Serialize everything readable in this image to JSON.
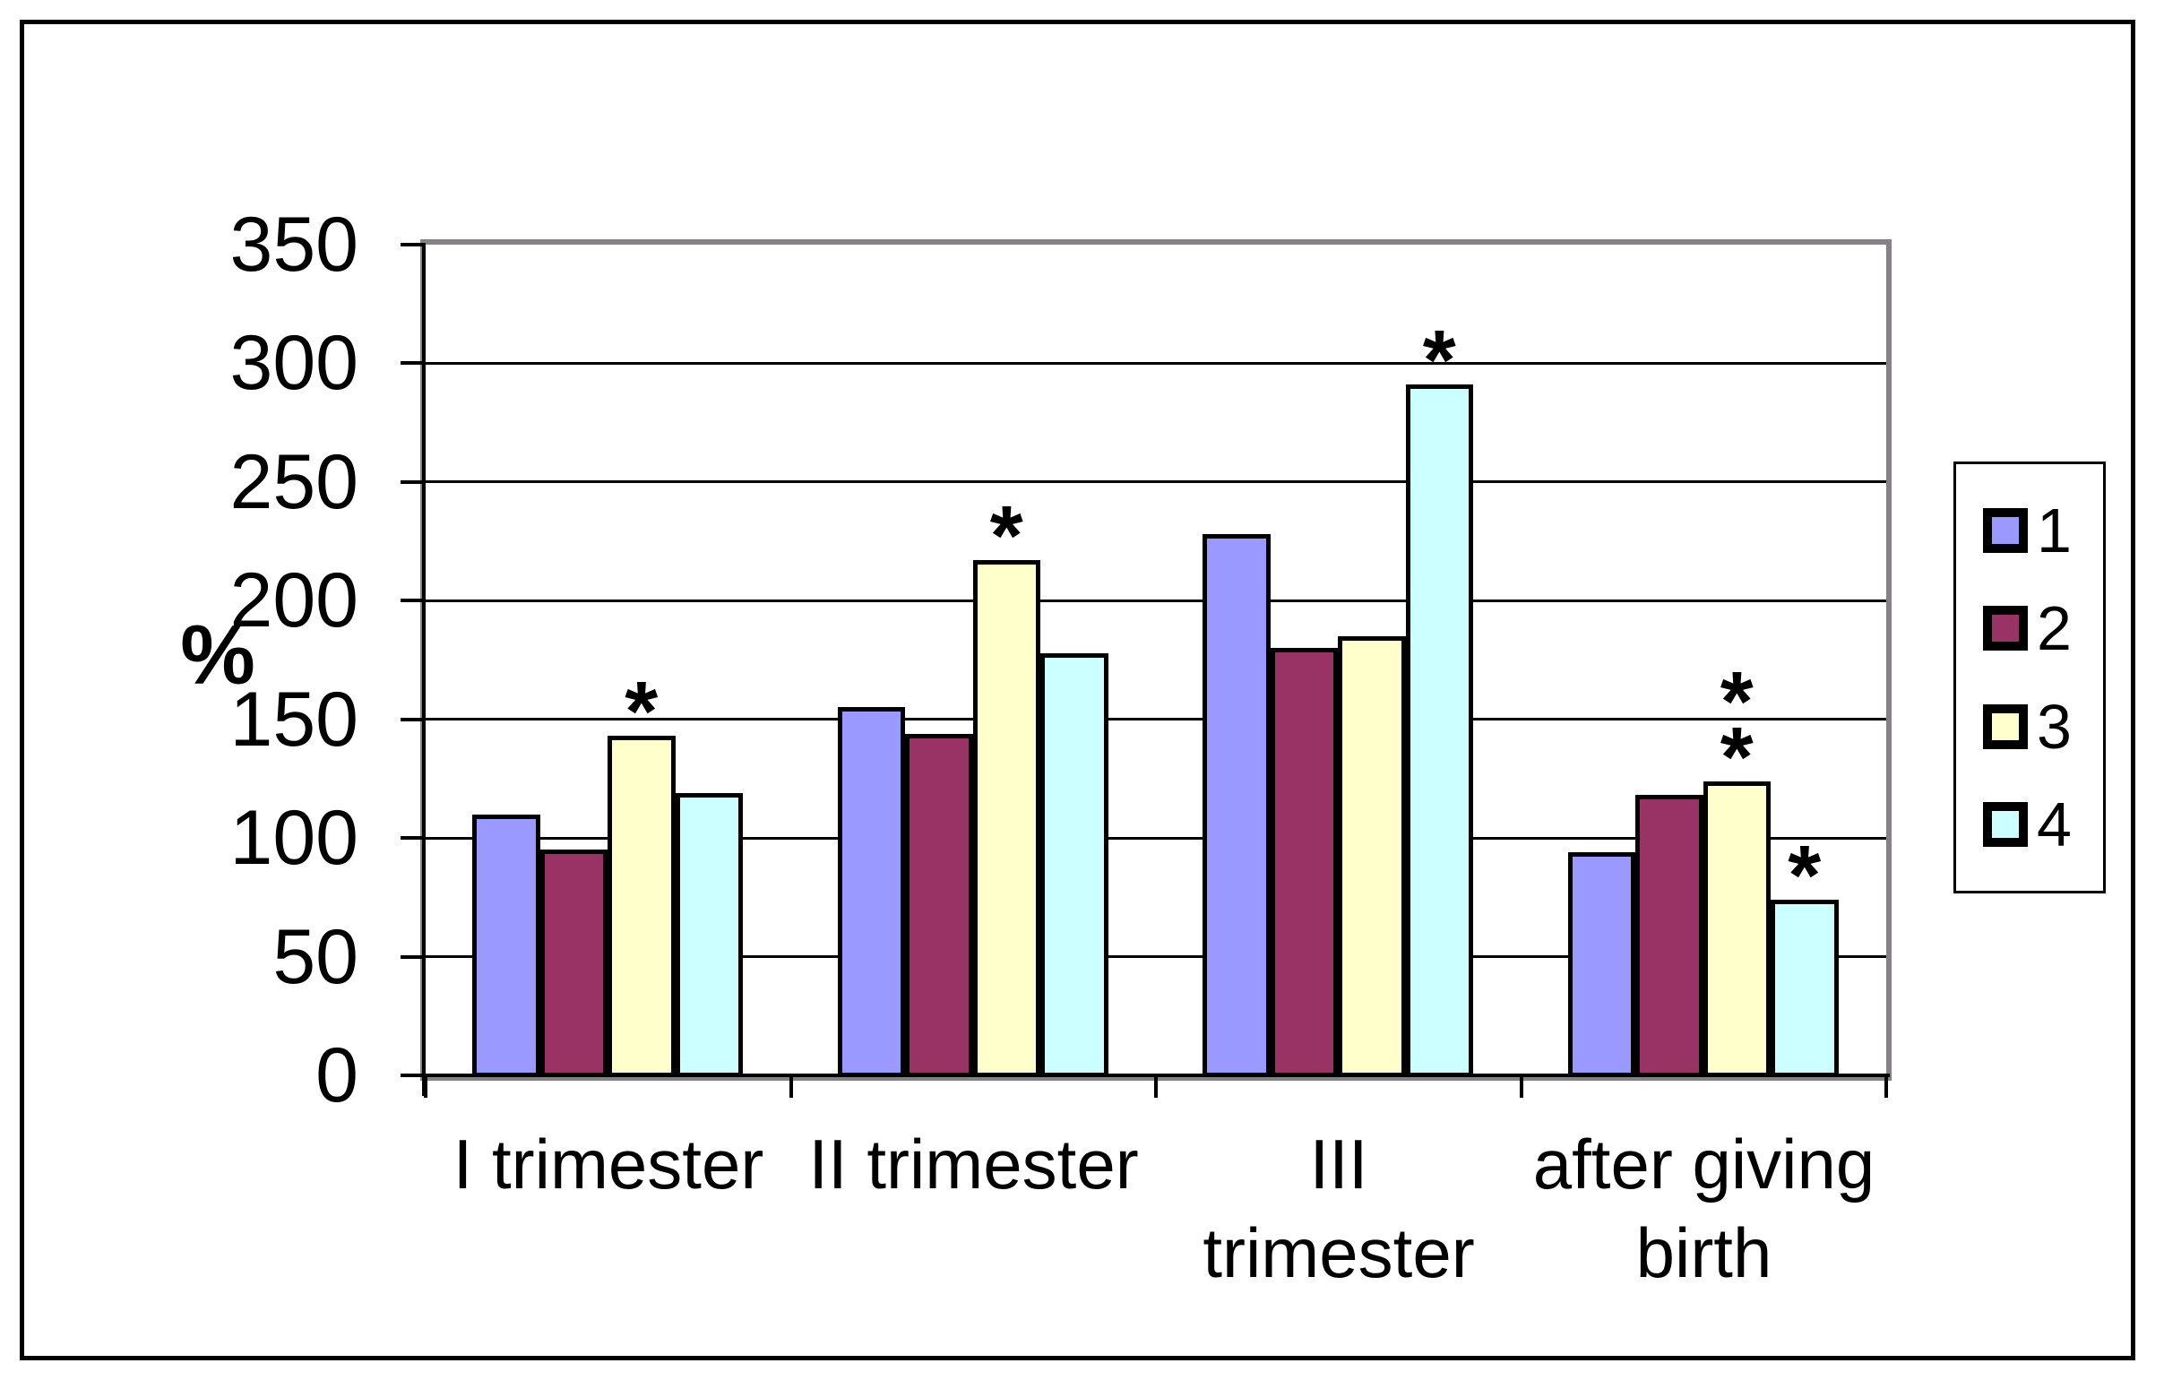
{
  "figure": {
    "background": "#FFFFFF",
    "border_color": "#000000",
    "plot_border_color": "#848284"
  },
  "chart_data": {
    "type": "bar",
    "title": "",
    "xlabel": "",
    "ylabel": "%",
    "ylim": [
      0,
      350
    ],
    "yticks": [
      0,
      50,
      100,
      150,
      200,
      250,
      300,
      350
    ],
    "gridlines": true,
    "legend_position": "right",
    "significance_marker": "*",
    "categories": [
      "I trimester",
      "II trimester",
      "III trimester",
      "after giving birth"
    ],
    "category_label_lines": [
      [
        "I trimester"
      ],
      [
        "II trimester"
      ],
      [
        "III",
        "trimester"
      ],
      [
        "after giving",
        "birth"
      ]
    ],
    "series": [
      {
        "name": "1",
        "color": "#9999FF",
        "values": [
          110,
          155,
          228,
          94
        ],
        "stars": [
          0,
          0,
          0,
          0
        ]
      },
      {
        "name": "2",
        "color": "#993366",
        "values": [
          95,
          144,
          180,
          118
        ],
        "stars": [
          0,
          0,
          0,
          0
        ]
      },
      {
        "name": "3",
        "color": "#FFFFCC",
        "values": [
          143,
          217,
          185,
          124
        ],
        "stars": [
          1,
          1,
          0,
          2
        ]
      },
      {
        "name": "4",
        "color": "#CCFFFF",
        "values": [
          119,
          178,
          291,
          74
        ],
        "stars": [
          0,
          0,
          1,
          1
        ]
      }
    ]
  }
}
